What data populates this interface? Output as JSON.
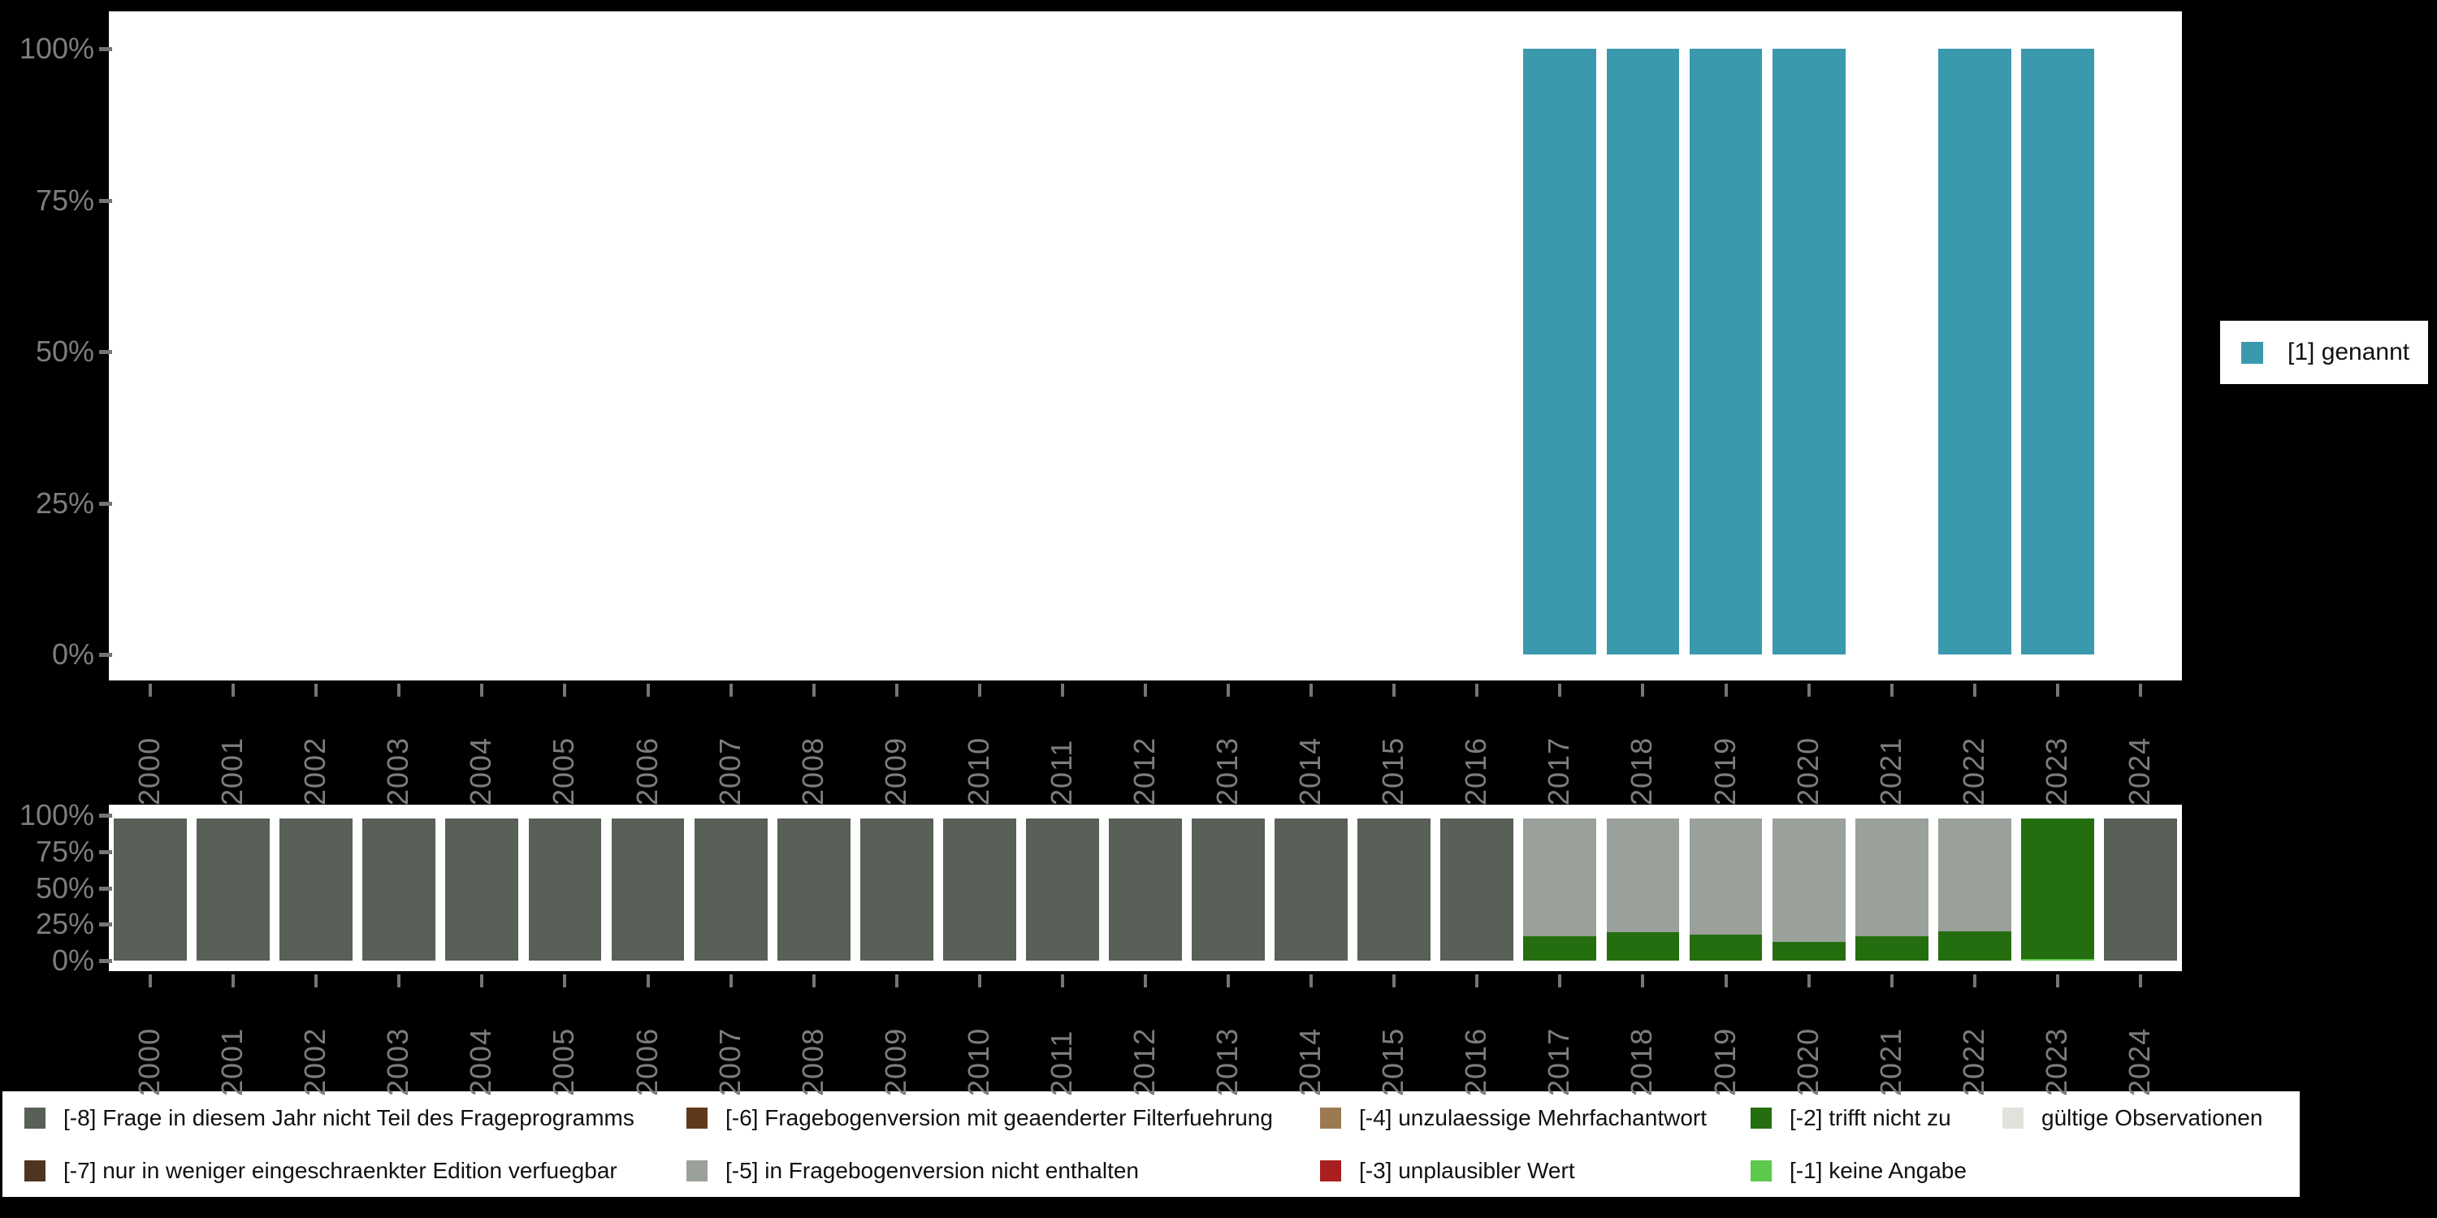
{
  "colors": {
    "background": "#000000",
    "panel": "#ffffff",
    "axis_text": "#7d7d7d",
    "tick": "#757575",
    "legend_text": "#111111",
    "genannt": "#3b99ae"
  },
  "axis": {
    "y_tick_labels": [
      "100%",
      "75%",
      "50%",
      "25%",
      "0%"
    ],
    "x_tick_labels": [
      "2000",
      "2001",
      "2002",
      "2003",
      "2004",
      "2005",
      "2006",
      "2007",
      "2008",
      "2009",
      "2010",
      "2011",
      "2012",
      "2013",
      "2014",
      "2015",
      "2016",
      "2017",
      "2018",
      "2019",
      "2020",
      "2021",
      "2022",
      "2023",
      "2024"
    ]
  },
  "top_legend": {
    "label": "[1] genannt",
    "color": "#3b99ae"
  },
  "chart_data": [
    {
      "type": "bar",
      "title": "",
      "xlabel": "",
      "ylabel": "",
      "ylim": [
        0,
        100
      ],
      "grid": false,
      "legend_position": "right",
      "categories": [
        "2000",
        "2001",
        "2002",
        "2003",
        "2004",
        "2005",
        "2006",
        "2007",
        "2008",
        "2009",
        "2010",
        "2011",
        "2012",
        "2013",
        "2014",
        "2015",
        "2016",
        "2017",
        "2018",
        "2019",
        "2020",
        "2021",
        "2022",
        "2023",
        "2024"
      ],
      "series": [
        {
          "name": "[1] genannt",
          "color": "#3b99ae",
          "values": [
            0,
            0,
            0,
            0,
            0,
            0,
            0,
            0,
            0,
            0,
            0,
            0,
            0,
            0,
            0,
            0,
            0,
            100,
            100,
            100,
            100,
            0,
            100,
            100,
            0
          ]
        }
      ]
    },
    {
      "type": "bar",
      "stacked": true,
      "title": "",
      "xlabel": "",
      "ylabel": "",
      "ylim": [
        0,
        100
      ],
      "grid": false,
      "legend_position": "bottom",
      "categories": [
        "2000",
        "2001",
        "2002",
        "2003",
        "2004",
        "2005",
        "2006",
        "2007",
        "2008",
        "2009",
        "2010",
        "2011",
        "2012",
        "2013",
        "2014",
        "2015",
        "2016",
        "2017",
        "2018",
        "2019",
        "2020",
        "2021",
        "2022",
        "2023",
        "2024"
      ],
      "series": [
        {
          "name": "[-8] Frage in diesem Jahr nicht Teil des Frageprogramms",
          "color": "#586058",
          "values": [
            100,
            100,
            100,
            100,
            100,
            100,
            100,
            100,
            100,
            100,
            100,
            100,
            100,
            100,
            100,
            100,
            100,
            0,
            0,
            0,
            0,
            0,
            0,
            0,
            100
          ]
        },
        {
          "name": "[-5] in Fragebogenversion nicht enthalten",
          "color": "#9aa09a",
          "values": [
            0,
            0,
            0,
            0,
            0,
            0,
            0,
            0,
            0,
            0,
            0,
            0,
            0,
            0,
            0,
            0,
            0,
            83,
            80,
            81.5,
            87,
            83,
            79.5,
            0,
            0
          ]
        },
        {
          "name": "[-2] trifft nicht zu",
          "color": "#256e10",
          "values": [
            0,
            0,
            0,
            0,
            0,
            0,
            0,
            0,
            0,
            0,
            0,
            0,
            0,
            0,
            0,
            0,
            0,
            17,
            20,
            18.5,
            13,
            17,
            20.5,
            99,
            0
          ]
        },
        {
          "name": "[-1] keine Angabe",
          "color": "#5cc84c",
          "values": [
            0,
            0,
            0,
            0,
            0,
            0,
            0,
            0,
            0,
            0,
            0,
            0,
            0,
            0,
            0,
            0,
            0,
            0,
            0,
            0,
            0,
            0,
            0,
            1,
            0
          ]
        }
      ]
    }
  ],
  "bottom_legend": {
    "columns": [
      [
        {
          "label": "[-8] Frage in diesem Jahr nicht Teil des Frageprogramms",
          "color": "#586058"
        },
        {
          "label": "[-7] nur in weniger eingeschraenkter Edition verfuegbar",
          "color": "#4e3522"
        }
      ],
      [
        {
          "label": "[-6] Fragebogenversion mit geaenderter Filterfuehrung",
          "color": "#5e3a1b"
        },
        {
          "label": "[-5] in Fragebogenversion nicht enthalten",
          "color": "#9aa09a"
        }
      ],
      [
        {
          "label": "[-4] unzulaessige Mehrfachantwort",
          "color": "#9b7a52"
        },
        {
          "label": "[-3] unplausibler Wert",
          "color": "#a91f1f"
        }
      ],
      [
        {
          "label": "[-2] trifft nicht zu",
          "color": "#256e10"
        },
        {
          "label": "[-1] keine Angabe",
          "color": "#5cc84c"
        }
      ],
      [
        {
          "label": "gültige Observationen",
          "color": "#dfe3dc"
        }
      ]
    ]
  }
}
